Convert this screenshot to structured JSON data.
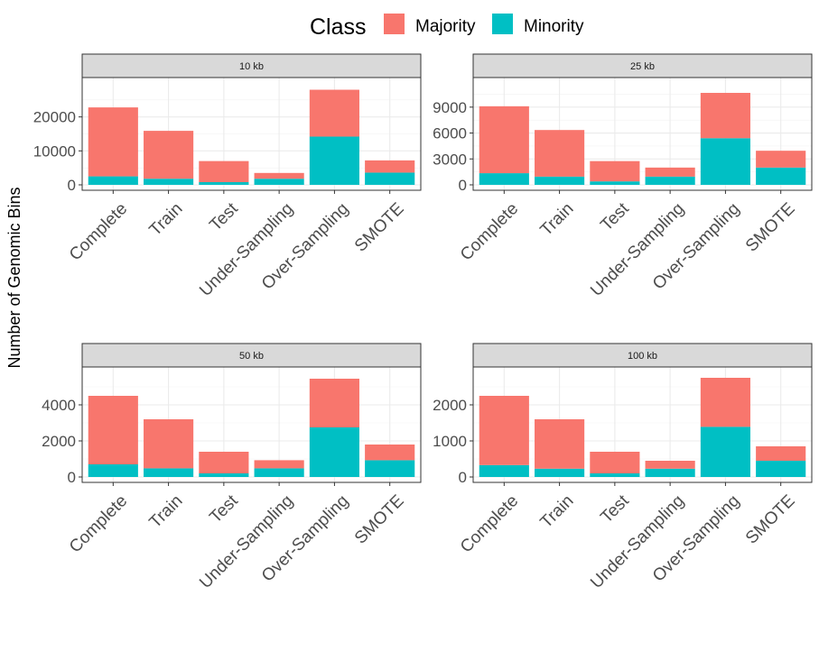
{
  "legend": {
    "title": "Class",
    "items": [
      {
        "label": "Majority",
        "color": "#F8766D"
      },
      {
        "label": "Minority",
        "color": "#00BFC4"
      }
    ]
  },
  "ylabel": "Number of Genomic Bins",
  "chart_data": {
    "type": "bar",
    "stacked": true,
    "facet_layout": "2x2",
    "categories": [
      "Complete",
      "Train",
      "Test",
      "Under-Sampling",
      "Over-Sampling",
      "SMOTE"
    ],
    "ylabel": "Number of Genomic Bins",
    "panels": [
      {
        "strip": "10 kb",
        "yticks": [
          0,
          10000,
          20000
        ],
        "ylim": [
          0,
          30000
        ],
        "series": [
          {
            "name": "Minority",
            "color": "#00BFC4",
            "values": [
              2500,
              1800,
              800,
              1800,
              14200,
              3600
            ]
          },
          {
            "name": "Majority",
            "color": "#F8766D",
            "values": [
              20300,
              14100,
              6200,
              1700,
              13800,
              3600
            ]
          }
        ]
      },
      {
        "strip": "25 kb",
        "yticks": [
          0,
          3000,
          6000,
          9000
        ],
        "ylim": [
          0,
          11800
        ],
        "series": [
          {
            "name": "Minority",
            "color": "#00BFC4",
            "values": [
              1350,
              950,
              400,
              950,
              5400,
              2000
            ]
          },
          {
            "name": "Majority",
            "color": "#F8766D",
            "values": [
              7750,
              5400,
              2350,
              1050,
              5250,
              1950
            ]
          }
        ]
      },
      {
        "strip": "50 kb",
        "yticks": [
          0,
          2000,
          4000
        ],
        "ylim": [
          0,
          5800
        ],
        "series": [
          {
            "name": "Minority",
            "color": "#00BFC4",
            "values": [
              700,
              480,
              200,
              480,
              2750,
              930
            ]
          },
          {
            "name": "Majority",
            "color": "#F8766D",
            "values": [
              3800,
              2720,
              1200,
              450,
              2700,
              870
            ]
          }
        ]
      },
      {
        "strip": "100 kb",
        "yticks": [
          0,
          1000,
          2000
        ],
        "ylim": [
          0,
          2900
        ],
        "series": [
          {
            "name": "Minority",
            "color": "#00BFC4",
            "values": [
              330,
              230,
              100,
              230,
              1390,
              450
            ]
          },
          {
            "name": "Majority",
            "color": "#F8766D",
            "values": [
              1920,
              1370,
              600,
              220,
              1360,
              400
            ]
          }
        ]
      }
    ]
  }
}
